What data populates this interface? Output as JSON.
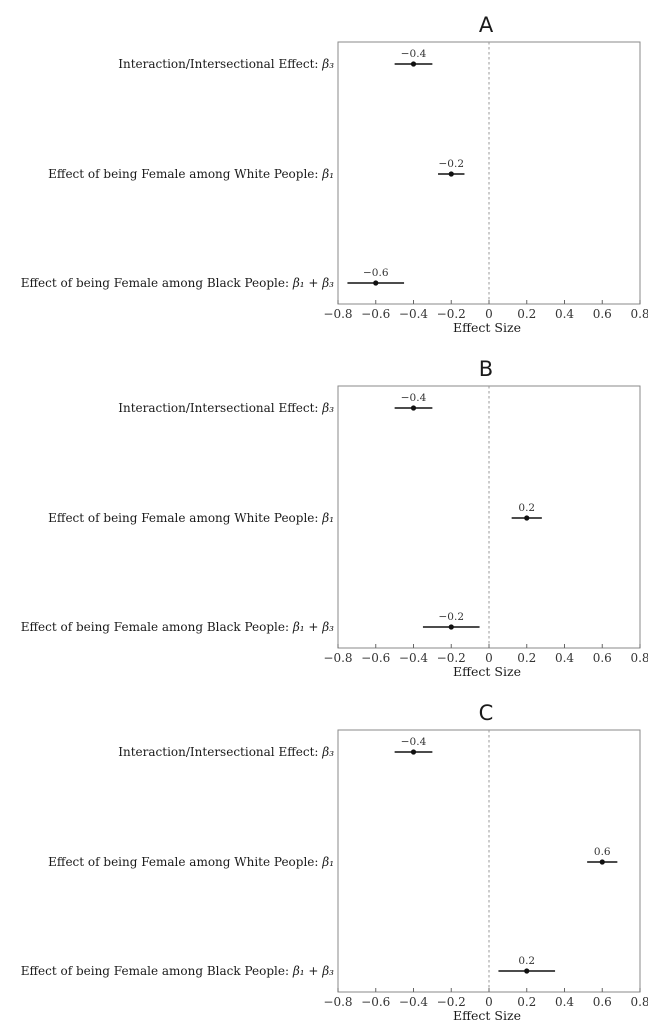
{
  "chart_data": [
    {
      "type": "scatter",
      "panel": "A",
      "xlabel": "Effect Size",
      "xlim": [
        -0.8,
        0.8
      ],
      "xticks": [
        "−0.8",
        "−0.6",
        "−0.4",
        "−0.2",
        "0",
        "0.2",
        "0.4",
        "0.6",
        "0.8"
      ],
      "categories": [
        {
          "prefix": "Interaction/Intersectional Effect: ",
          "symbol": "β₃"
        },
        {
          "prefix": "Effect of being Female among White People: ",
          "symbol": "β₁"
        },
        {
          "prefix": "Effect of being Female among Black People: ",
          "symbol": "β₁ + β₃"
        }
      ],
      "estimates": [
        -0.4,
        -0.2,
        -0.6
      ],
      "ci_lower": [
        -0.5,
        -0.27,
        -0.75
      ],
      "ci_upper": [
        -0.3,
        -0.13,
        -0.45
      ],
      "labels": [
        "−0.4",
        "−0.2",
        "−0.6"
      ]
    },
    {
      "type": "scatter",
      "panel": "B",
      "xlabel": "Effect Size",
      "xlim": [
        -0.8,
        0.8
      ],
      "xticks": [
        "−0.8",
        "−0.6",
        "−0.4",
        "−0.2",
        "0",
        "0.2",
        "0.4",
        "0.6",
        "0.8"
      ],
      "categories": [
        {
          "prefix": "Interaction/Intersectional Effect: ",
          "symbol": "β₃"
        },
        {
          "prefix": "Effect of being Female among White People: ",
          "symbol": "β₁"
        },
        {
          "prefix": "Effect of being Female among Black People: ",
          "symbol": "β₁ + β₃"
        }
      ],
      "estimates": [
        -0.4,
        0.2,
        -0.2
      ],
      "ci_lower": [
        -0.5,
        0.12,
        -0.35
      ],
      "ci_upper": [
        -0.3,
        0.28,
        -0.05
      ],
      "labels": [
        "−0.4",
        "0.2",
        "−0.2"
      ]
    },
    {
      "type": "scatter",
      "panel": "C",
      "xlabel": "Effect Size",
      "xlim": [
        -0.8,
        0.8
      ],
      "xticks": [
        "−0.8",
        "−0.6",
        "−0.4",
        "−0.2",
        "0",
        "0.2",
        "0.4",
        "0.6",
        "0.8"
      ],
      "categories": [
        {
          "prefix": "Interaction/Intersectional Effect: ",
          "symbol": "β₃"
        },
        {
          "prefix": "Effect of being Female among White People: ",
          "symbol": "β₁"
        },
        {
          "prefix": "Effect of being Female among Black People: ",
          "symbol": "β₁ + β₃"
        }
      ],
      "estimates": [
        -0.4,
        0.6,
        0.2
      ],
      "ci_lower": [
        -0.5,
        0.52,
        0.05
      ],
      "ci_upper": [
        -0.3,
        0.68,
        0.35
      ],
      "labels": [
        "−0.4",
        "0.6",
        "0.2"
      ]
    }
  ]
}
